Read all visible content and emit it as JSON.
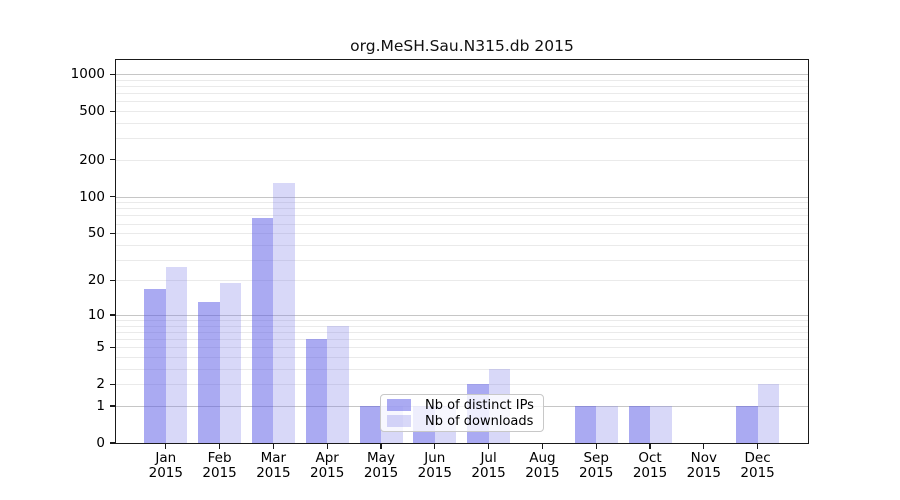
{
  "chart_data": {
    "type": "bar",
    "title": "org.MeSH.Sau.N315.db 2015",
    "year_label": "2015",
    "months": [
      "Jan",
      "Feb",
      "Mar",
      "Apr",
      "May",
      "Jun",
      "Jul",
      "Aug",
      "Sep",
      "Oct",
      "Nov",
      "Dec"
    ],
    "categories": [
      "Jan 2015",
      "Feb 2015",
      "Mar 2015",
      "Apr 2015",
      "May 2015",
      "Jun 2015",
      "Jul 2015",
      "Aug 2015",
      "Sep 2015",
      "Oct 2015",
      "Nov 2015",
      "Dec 2015"
    ],
    "series": [
      {
        "name": "Nb of distinct IPs",
        "color": "#aaaaf2",
        "fill_rgba": "rgba(85,85,230,0.5)",
        "values": [
          17,
          13,
          67,
          6,
          1,
          1,
          2,
          0,
          1,
          1,
          0,
          1
        ]
      },
      {
        "name": "Nb of downloads",
        "color": "#d8d8f8",
        "fill_rgba": "rgba(125,125,232,0.3)",
        "values": [
          26,
          19,
          129,
          8,
          1,
          1,
          3,
          0,
          1,
          1,
          0,
          2
        ]
      }
    ],
    "y_axis": {
      "scale": "log1p",
      "tick_labels": [
        0,
        1,
        2,
        5,
        10,
        20,
        50,
        100,
        200,
        500,
        1000
      ],
      "major_gridlines": [
        1,
        10,
        100,
        1000
      ],
      "minor_gridlines": [
        2,
        3,
        4,
        5,
        6,
        7,
        8,
        9,
        20,
        30,
        40,
        50,
        60,
        70,
        80,
        90,
        200,
        300,
        400,
        500,
        600,
        700,
        800,
        900
      ],
      "ylim": [
        0,
        1350
      ]
    },
    "legend_position": "lower center",
    "grid": true
  },
  "colors": {
    "minor_grid": "#eaeaea",
    "major_grid": "#c6c6c6",
    "axis": "#1a1a1a",
    "legend_border": "#c8c8c8",
    "legend_bg": "rgba(255,255,255,0.8)",
    "text": "#000000"
  }
}
